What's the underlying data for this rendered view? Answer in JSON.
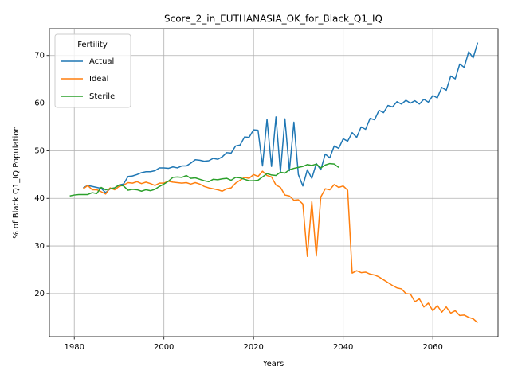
{
  "chart_data": {
    "type": "line",
    "title": "Score_2_in_EUTHANASIA_OK_for_Black_Q1_IQ",
    "xlabel": "Years",
    "ylabel": "% of Black Q1_IQ Population",
    "legend_title": "Fertility",
    "legend_loc": "upper left",
    "grid": true,
    "xlim": [
      1974.45,
      2074.55
    ],
    "ylim": [
      10.96,
      75.64
    ],
    "xticks": [
      1980,
      2000,
      2020,
      2040,
      2060
    ],
    "yticks": [
      20,
      30,
      40,
      50,
      60,
      70
    ],
    "x": [
      1979,
      1980,
      1981,
      1982,
      1983,
      1984,
      1985,
      1986,
      1987,
      1988,
      1989,
      1990,
      1991,
      1992,
      1993,
      1994,
      1995,
      1996,
      1997,
      1998,
      1999,
      2000,
      2001,
      2002,
      2003,
      2004,
      2005,
      2006,
      2007,
      2008,
      2009,
      2010,
      2011,
      2012,
      2013,
      2014,
      2015,
      2016,
      2017,
      2018,
      2019,
      2020,
      2021,
      2022,
      2023,
      2024,
      2025,
      2026,
      2027,
      2028,
      2029,
      2030,
      2031,
      2032,
      2033,
      2034,
      2035,
      2036,
      2037,
      2038,
      2039,
      2040,
      2041,
      2042,
      2043,
      2044,
      2045,
      2046,
      2047,
      2048,
      2049,
      2050,
      2051,
      2052,
      2053,
      2054,
      2055,
      2056,
      2057,
      2058,
      2059,
      2060,
      2061,
      2062,
      2063,
      2064,
      2065,
      2066,
      2067,
      2068,
      2069,
      2070
    ],
    "series": [
      {
        "name": "Actual",
        "color": "#1f77b4",
        "values": [
          null,
          null,
          null,
          42.2,
          42.7,
          42.5,
          42.3,
          42.1,
          41.2,
          42.0,
          42.2,
          42.8,
          43.0,
          44.6,
          44.7,
          45.0,
          45.4,
          45.6,
          45.6,
          45.8,
          46.4,
          46.4,
          46.3,
          46.6,
          46.4,
          46.8,
          46.8,
          47.4,
          48.1,
          48.0,
          47.8,
          47.9,
          48.4,
          48.2,
          48.7,
          49.6,
          49.5,
          51.0,
          51.2,
          52.9,
          52.8,
          54.4,
          54.3,
          46.8,
          56.6,
          46.7,
          57.1,
          45.5,
          56.7,
          45.8,
          56.0,
          45.0,
          42.6,
          46.0,
          44.2,
          47.3,
          46.0,
          49.3,
          48.5,
          51.0,
          50.5,
          52.5,
          52.0,
          53.8,
          52.8,
          55.0,
          54.5,
          56.8,
          56.5,
          58.5,
          58.0,
          59.5,
          59.2,
          60.3,
          59.8,
          60.6,
          60.0,
          60.5,
          59.8,
          60.8,
          60.2,
          61.6,
          61.1,
          63.3,
          62.7,
          65.7,
          65.1,
          68.2,
          67.5,
          70.8,
          69.5,
          72.7
        ]
      },
      {
        "name": "Ideal",
        "color": "#ff7f0e",
        "values": [
          null,
          null,
          null,
          42.0,
          42.7,
          41.8,
          41.8,
          41.4,
          40.9,
          42.2,
          41.8,
          42.5,
          42.8,
          43.3,
          43.2,
          43.5,
          43.1,
          43.4,
          43.1,
          42.7,
          43.2,
          43.2,
          43.6,
          43.4,
          43.3,
          43.2,
          43.3,
          43.0,
          43.3,
          43.0,
          42.5,
          42.2,
          42.0,
          41.8,
          41.5,
          42.0,
          42.2,
          43.2,
          43.8,
          44.4,
          44.2,
          45.0,
          44.6,
          45.7,
          44.8,
          44.5,
          42.8,
          42.3,
          40.7,
          40.5,
          39.6,
          39.7,
          38.8,
          27.8,
          39.3,
          27.9,
          40.3,
          42.0,
          41.8,
          42.9,
          42.3,
          42.6,
          41.7,
          24.3,
          24.8,
          24.4,
          24.5,
          24.1,
          23.9,
          23.5,
          22.9,
          22.3,
          21.7,
          21.2,
          21.0,
          20.0,
          19.9,
          18.3,
          18.9,
          17.2,
          18.0,
          16.4,
          17.5,
          16.1,
          17.2,
          15.9,
          16.4,
          15.4,
          15.5,
          15.0,
          14.7,
          13.9
        ]
      },
      {
        "name": "Sterile",
        "color": "#2ca02c",
        "values": [
          40.5,
          40.7,
          40.8,
          40.8,
          40.8,
          41.2,
          41.0,
          42.3,
          41.8,
          42.0,
          42.2,
          42.8,
          42.6,
          41.7,
          41.9,
          41.8,
          41.5,
          41.8,
          41.6,
          41.9,
          42.5,
          43.0,
          43.6,
          44.4,
          44.5,
          44.4,
          44.8,
          44.2,
          44.3,
          44.0,
          43.7,
          43.5,
          44.0,
          43.9,
          44.1,
          44.2,
          43.8,
          44.4,
          44.3,
          44.0,
          43.7,
          43.7,
          43.8,
          44.5,
          45.2,
          44.9,
          44.8,
          45.5,
          45.3,
          46.0,
          46.3,
          46.5,
          46.7,
          47.1,
          46.9,
          47.2,
          46.4,
          47.0,
          47.3,
          47.2,
          46.5,
          null,
          null,
          null,
          null,
          null,
          null,
          null,
          null,
          null,
          null,
          null,
          null,
          null,
          null,
          null,
          null,
          null,
          null,
          null,
          null,
          null,
          null,
          null,
          null,
          null,
          null,
          null,
          null,
          null,
          null,
          null
        ]
      }
    ]
  }
}
